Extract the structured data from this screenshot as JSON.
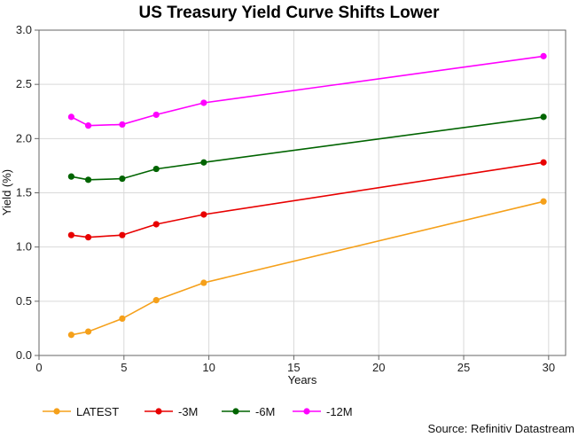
{
  "chart_data": {
    "type": "line",
    "title": "US Treasury Yield Curve Shifts Lower",
    "xlabel": "Years",
    "ylabel": "Yield (%)",
    "xlim": [
      0,
      31
    ],
    "ylim": [
      0.0,
      3.0
    ],
    "x_ticks": [
      0,
      5,
      10,
      15,
      20,
      25,
      30
    ],
    "y_ticks": [
      0.0,
      0.5,
      1.0,
      1.5,
      2.0,
      2.5,
      3.0
    ],
    "x_tick_labels": [
      "0",
      "5",
      "10",
      "15",
      "20",
      "25",
      "30"
    ],
    "y_tick_labels": [
      "0.0",
      "0.5",
      "1.0",
      "1.5",
      "2.0",
      "2.5",
      "3.0"
    ],
    "grid": true,
    "legend_position": "bottom-left",
    "source": "Source: Refinitiv Datastream",
    "x": [
      1.9,
      2.9,
      4.9,
      6.9,
      9.7,
      29.7
    ],
    "series": [
      {
        "name": "LATEST",
        "color": "#f5a01a",
        "values": [
          0.19,
          0.22,
          0.34,
          0.51,
          0.67,
          1.42
        ]
      },
      {
        "name": "-3M",
        "color": "#e80000",
        "values": [
          1.11,
          1.09,
          1.11,
          1.21,
          1.3,
          1.78
        ]
      },
      {
        "name": "-6M",
        "color": "#006400",
        "values": [
          1.65,
          1.62,
          1.63,
          1.72,
          1.78,
          2.2
        ]
      },
      {
        "name": "-12M",
        "color": "#ff00ff",
        "values": [
          2.2,
          2.12,
          2.13,
          2.22,
          2.33,
          2.76
        ]
      }
    ]
  }
}
